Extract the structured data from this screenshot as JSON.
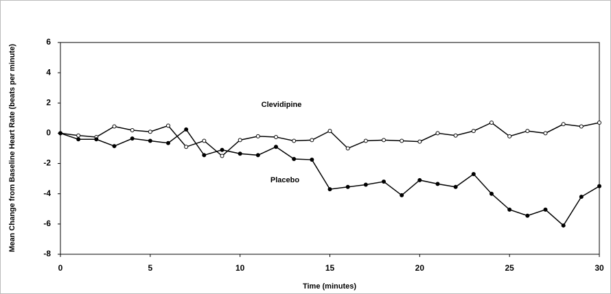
{
  "chart_data": {
    "type": "line",
    "x_label": "Time (minutes)",
    "y_label": "Mean Change from Baseline Heart Rate (beats per minute)",
    "x": [
      0,
      1,
      2,
      3,
      4,
      5,
      6,
      7,
      8,
      9,
      10,
      11,
      12,
      13,
      14,
      15,
      16,
      17,
      18,
      19,
      20,
      21,
      22,
      23,
      24,
      25,
      26,
      27,
      28,
      29,
      30
    ],
    "series": [
      {
        "name": "Clevidipine",
        "color": "#000000",
        "marker": "open",
        "values": [
          0,
          -0.15,
          -0.25,
          0.45,
          0.2,
          0.1,
          0.5,
          -0.9,
          -0.5,
          -1.5,
          -0.45,
          -0.2,
          -0.25,
          -0.5,
          -0.45,
          0.15,
          -1.0,
          -0.5,
          -0.45,
          -0.5,
          -0.55,
          0.0,
          -0.15,
          0.15,
          0.7,
          -0.2,
          0.15,
          0.0,
          0.6,
          0.45,
          0.7
        ]
      },
      {
        "name": "Placebo",
        "color": "#000000",
        "marker": "filled",
        "values": [
          0,
          -0.4,
          -0.4,
          -0.85,
          -0.35,
          -0.5,
          -0.65,
          0.25,
          -1.45,
          -1.1,
          -1.35,
          -1.45,
          -0.9,
          -1.7,
          -1.75,
          -3.7,
          -3.55,
          -3.4,
          -3.2,
          -4.1,
          -3.1,
          -3.35,
          -3.55,
          -2.7,
          -4.0,
          -5.05,
          -5.45,
          -5.05,
          -6.1,
          -4.2,
          -3.5
        ]
      }
    ],
    "xlim": [
      0,
      30
    ],
    "xticks": [
      0,
      5,
      10,
      15,
      20,
      25,
      30
    ],
    "ylim": [
      -8,
      6
    ],
    "yticks": [
      -8,
      -6,
      -4,
      -2,
      0,
      2,
      4,
      6
    ],
    "grid": false
  }
}
